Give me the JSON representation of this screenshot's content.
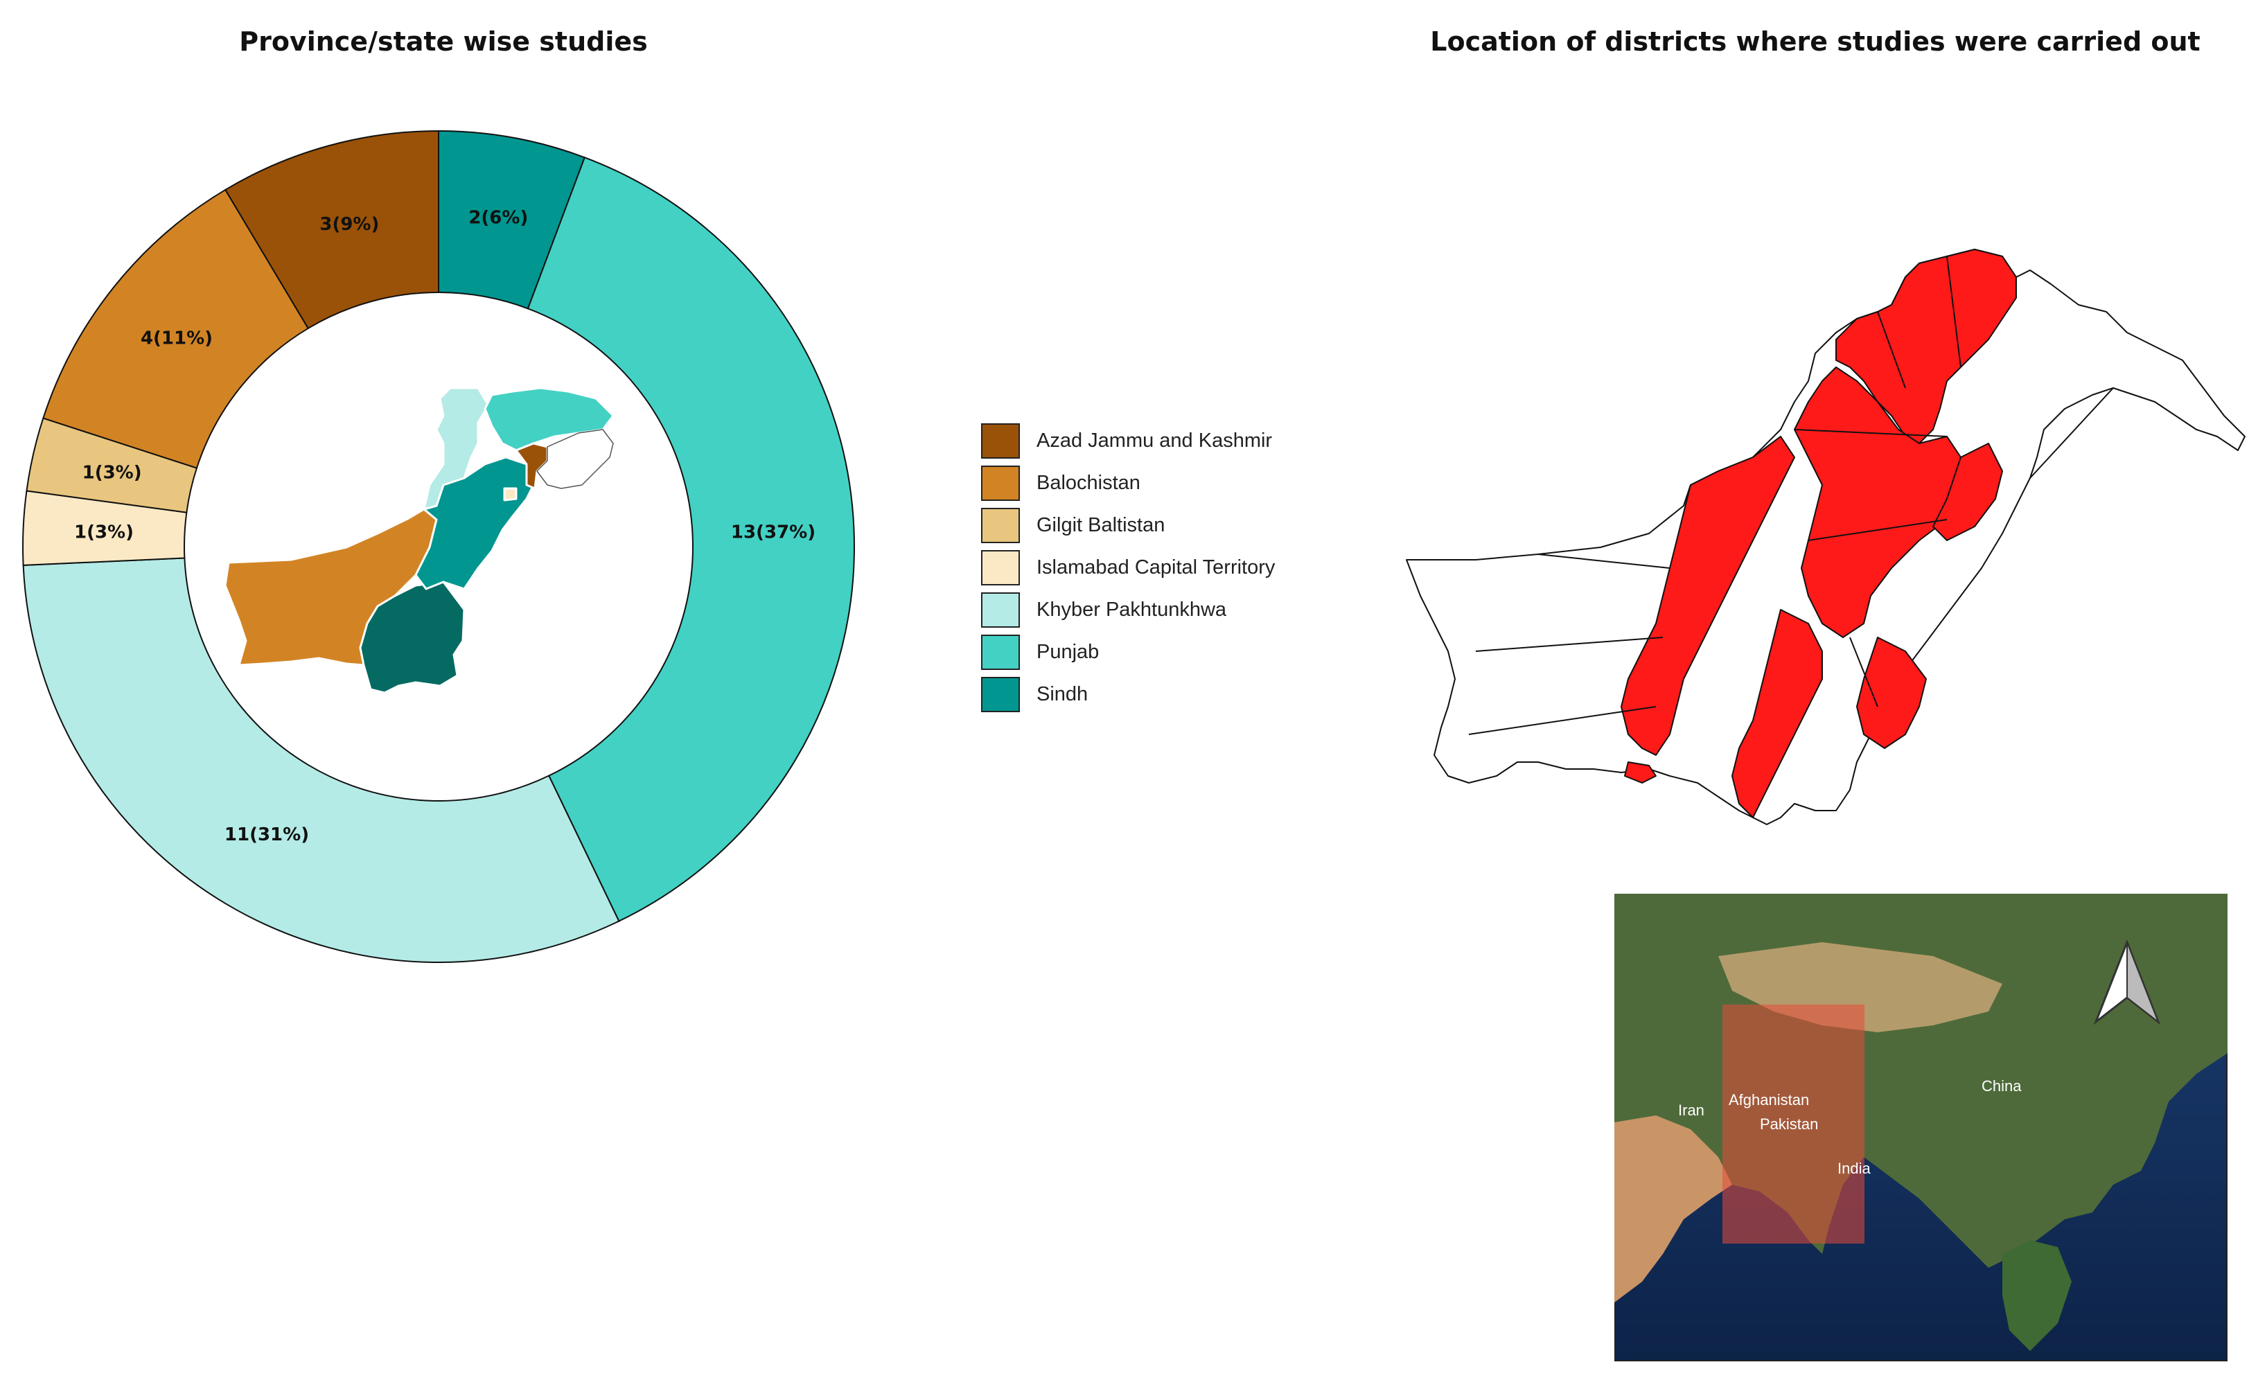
{
  "donut_chart": {
    "title": "Province/state wise studies"
  },
  "map_panel": {
    "title": "Location of districts where studies were carried out",
    "district_fill_color": "#ff1a1a",
    "inset": {
      "labels": {
        "china": "China",
        "iran": "Iran",
        "afghanistan": "Afghanistan",
        "pakistan": "Pakistan",
        "india": "India"
      },
      "north_arrow_icon": "north-arrow-icon"
    }
  },
  "chart_data": {
    "type": "pie",
    "donut": true,
    "title": "Province/state wise studies",
    "legend_position": "right",
    "slices": [
      {
        "name": "Sindh",
        "value": 2,
        "label": "2(6%)",
        "color": "#019690"
      },
      {
        "name": "Punjab",
        "value": 13,
        "label": "13(37%)",
        "color": "#43d1c4"
      },
      {
        "name": "Khyber Pakhtunkhwa",
        "value": 11,
        "label": "11(31%)",
        "color": "#b4ebe6"
      },
      {
        "name": "Islamabad Capital Territory",
        "value": 1,
        "label": "1(3%)",
        "color": "#fbe9c6"
      },
      {
        "name": "Gilgit Baltistan",
        "value": 1,
        "label": "1(3%)",
        "color": "#e9c67f"
      },
      {
        "name": "Balochistan",
        "value": 4,
        "label": "4(11%)",
        "color": "#d28424"
      },
      {
        "name": "Azad Jammu and Kashmir",
        "value": 3,
        "label": "3(9%)",
        "color": "#9a5208"
      }
    ],
    "legend": [
      {
        "name": "Azad Jammu and Kashmir",
        "color": "#9a5208"
      },
      {
        "name": "Balochistan",
        "color": "#d28424"
      },
      {
        "name": "Gilgit Baltistan",
        "color": "#e9c67f"
      },
      {
        "name": "Islamabad Capital Territory",
        "color": "#fbe9c6"
      },
      {
        "name": "Khyber Pakhtunkhwa",
        "color": "#b4ebe6"
      },
      {
        "name": "Punjab",
        "color": "#43d1c4"
      },
      {
        "name": "Sindh",
        "color": "#019690"
      }
    ]
  }
}
